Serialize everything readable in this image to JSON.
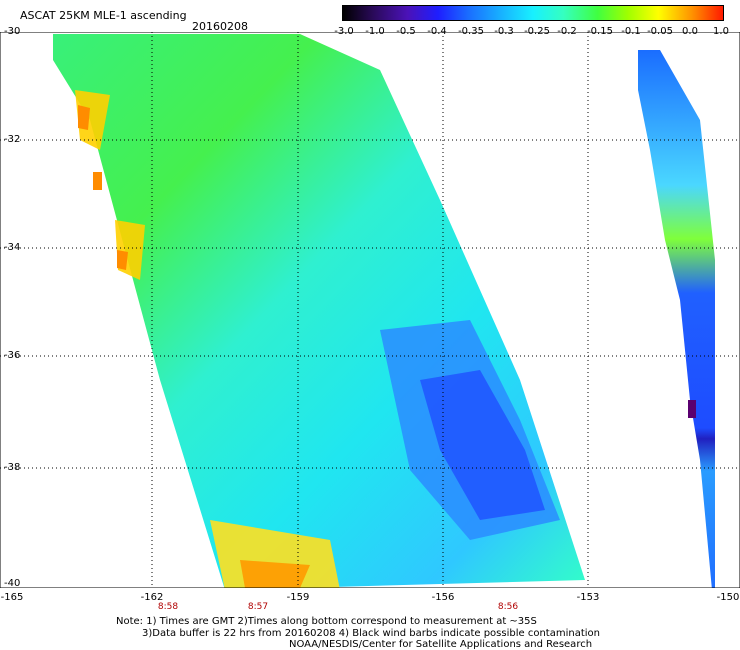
{
  "header": {
    "title": "ASCAT 25KM MLE-1 ascending",
    "date": "20160208"
  },
  "colorbar": {
    "ticks": [
      "-3.0",
      "-1.0",
      "-0.5",
      "-0.4",
      "-0.35",
      "-0.3",
      "-0.25",
      "-0.2",
      "-0.15",
      "-0.1",
      "-0.05",
      "0.0",
      "1.0"
    ],
    "colors": [
      "#1a0033",
      "#3b0a7a",
      "#5a14c8",
      "#2a2aff",
      "#1f6dff",
      "#19a8ff",
      "#19e6ff",
      "#33ffd0",
      "#33ff66",
      "#a0ff00",
      "#ffff00",
      "#ff9a00",
      "#ff2a00"
    ]
  },
  "axes": {
    "y_labels": [
      "-30",
      "-32",
      "-34",
      "-36",
      "-38",
      "-40"
    ],
    "x_labels": [
      "-165",
      "-162",
      "-159",
      "-156",
      "-153",
      "-150"
    ],
    "time_labels": [
      "8:58",
      "8:57",
      "8:56"
    ]
  },
  "notes": {
    "line1": "Note: 1) Times are GMT 2)Times along bottom correspond to measurement at ~35S",
    "line2": "3)Data buffer is 22 hrs from 20160208 4) Black wind barbs indicate possible contamination",
    "line3": "NOAA/NESDIS/Center for Satellite Applications and Research"
  }
}
